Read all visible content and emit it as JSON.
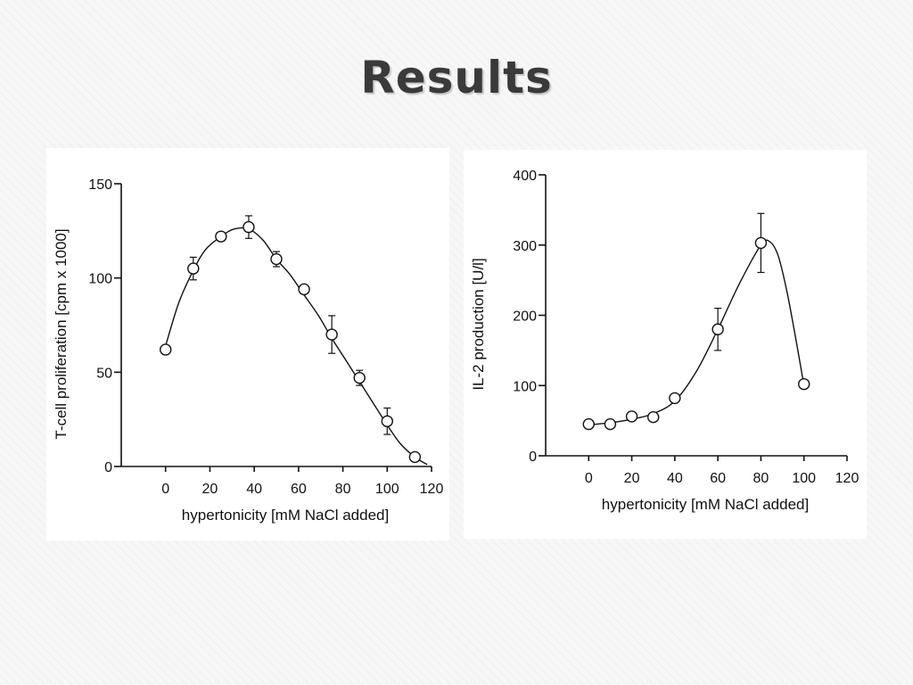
{
  "slide": {
    "title": "Results"
  },
  "chart_data": [
    {
      "type": "line",
      "title": "",
      "xlabel": "hypertonicity [mM NaCl added]",
      "ylabel": "T-cell proliferation [cpm x 1000]",
      "xlim": [
        -20,
        120
      ],
      "ylim": [
        0,
        150
      ],
      "x_ticks": [
        0,
        20,
        40,
        60,
        80,
        100,
        120
      ],
      "y_ticks": [
        0,
        50,
        100,
        150
      ],
      "grid": false,
      "x": [
        0,
        12.5,
        25,
        37.5,
        50,
        62.5,
        75,
        87.5,
        100,
        112.5
      ],
      "y": [
        62,
        105,
        122,
        127,
        110,
        94,
        70,
        47,
        24,
        5
      ],
      "error": [
        0,
        6,
        0,
        6,
        4,
        0,
        10,
        4,
        7,
        0
      ],
      "fit_curve": {
        "x": [
          0,
          6,
          12.5,
          18,
          25,
          31,
          37.5,
          44,
          50,
          56,
          62.5,
          69,
          75,
          81,
          87.5,
          94,
          100,
          106,
          112.5,
          118
        ],
        "y": [
          64,
          87,
          104,
          115,
          122,
          126,
          126,
          120,
          110,
          102,
          91,
          80,
          68,
          57,
          45,
          33,
          22,
          12,
          5,
          1
        ]
      }
    },
    {
      "type": "line",
      "title": "",
      "xlabel": "hypertonicity [mM NaCl added]",
      "ylabel": "IL-2 production [U/l]",
      "xlim": [
        -20,
        120
      ],
      "ylim": [
        0,
        400
      ],
      "x_ticks": [
        0,
        20,
        40,
        60,
        80,
        100,
        120
      ],
      "y_ticks": [
        0,
        100,
        200,
        300,
        400
      ],
      "grid": false,
      "x": [
        0,
        10,
        20,
        30,
        40,
        60,
        80,
        100
      ],
      "y": [
        45,
        45,
        56,
        55,
        82,
        180,
        303,
        102
      ],
      "error": [
        0,
        0,
        0,
        0,
        0,
        30,
        42,
        0
      ],
      "fit_curve": {
        "x": [
          0,
          10,
          20,
          30,
          40,
          50,
          60,
          70,
          80,
          84,
          88,
          92,
          96,
          100
        ],
        "y": [
          44,
          47,
          52,
          60,
          78,
          120,
          180,
          245,
          300,
          305,
          285,
          235,
          170,
          100
        ]
      }
    }
  ]
}
